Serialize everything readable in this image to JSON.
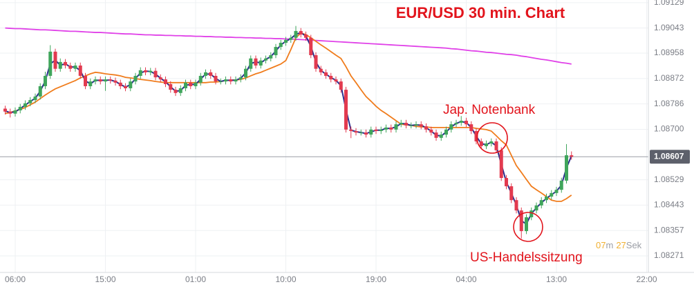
{
  "chart_data": {
    "type": "candlestick",
    "title": "EUR/USD 30 min. Chart",
    "annotations": [
      "Jap. Notenbank",
      "US-Handelssitzung"
    ],
    "countdown": {
      "minutes": "07",
      "minutes_unit": "m",
      "seconds": "27",
      "seconds_unit": "Sek"
    },
    "current_price": 1.08607,
    "up_color": "#3fa55b",
    "down_color": "#e23a4f",
    "ylim": [
      1.08215,
      1.09138
    ],
    "yticks": [
      1.09129,
      1.09043,
      1.08958,
      1.08872,
      1.08786,
      {
        "value": 1.087,
        "label": "1.08700"
      },
      1.08529,
      1.08443,
      1.08357,
      1.08271
    ],
    "grid": true,
    "categories": [
      null,
      null,
      "06:00",
      null,
      null,
      null,
      null,
      null,
      null,
      null,
      null,
      null,
      null,
      null,
      null,
      null,
      null,
      null,
      null,
      null,
      "15:00",
      null,
      null,
      null,
      null,
      null,
      null,
      null,
      null,
      null,
      null,
      null,
      null,
      null,
      null,
      null,
      null,
      null,
      "01:00",
      null,
      null,
      null,
      null,
      null,
      null,
      null,
      null,
      null,
      null,
      null,
      null,
      null,
      null,
      null,
      null,
      null,
      "10:00",
      null,
      null,
      null,
      null,
      null,
      null,
      null,
      null,
      null,
      null,
      null,
      null,
      null,
      null,
      null,
      null,
      null,
      "19:00",
      null,
      null,
      null,
      null,
      null,
      null,
      null,
      null,
      null,
      null,
      null,
      null,
      null,
      null,
      null,
      null,
      null,
      "04:00",
      null,
      null,
      null,
      null,
      null,
      null,
      null,
      null,
      null,
      null,
      null,
      null,
      null,
      null,
      null,
      null,
      null,
      "13:00",
      null,
      null,
      null,
      null,
      null,
      null,
      null,
      null,
      null,
      null,
      null,
      null,
      null,
      null,
      null,
      null,
      null,
      "22:00"
    ],
    "open": [
      1.0877,
      1.0876,
      1.08753,
      1.08764,
      1.08776,
      1.08788,
      1.08799,
      1.08811,
      1.08846,
      1.08881,
      1.08963,
      1.08905,
      1.08928,
      1.08916,
      1.08905,
      1.08916,
      1.08881,
      1.08846,
      1.08862,
      1.08869,
      1.08862,
      1.08869,
      1.08865,
      1.08858,
      1.08846,
      1.08839,
      1.08862,
      1.08881,
      1.089,
      1.08893,
      1.08898,
      1.08876,
      1.08869,
      1.08853,
      1.08834,
      1.08823,
      1.08839,
      1.08858,
      1.08846,
      1.08858,
      1.08881,
      1.08893,
      1.08881,
      1.08862,
      1.08862,
      1.08869,
      1.08862,
      1.08869,
      1.08876,
      1.08905,
      1.0894,
      1.08916,
      1.08933,
      1.0894,
      1.08951,
      1.08979,
      1.08993,
      1.09003,
      1.0901,
      1.09033,
      1.09021,
      1.0901,
      1.08951,
      1.08905,
      1.08893,
      1.08881,
      1.08869,
      1.08862,
      1.08834,
      1.08699,
      1.08694,
      1.08689,
      1.08689,
      1.08682,
      1.08699,
      1.08694,
      1.08699,
      1.08706,
      1.08699,
      1.08717,
      1.08722,
      1.08713,
      1.08713,
      1.08717,
      1.0871,
      1.08699,
      1.08689,
      1.08671,
      1.08682,
      1.08699,
      1.08717,
      1.08722,
      1.08729,
      1.08717,
      1.08694,
      1.08659,
      1.08643,
      1.08652,
      1.08659,
      1.08629,
      1.08535,
      1.08507,
      1.0846,
      1.08425,
      1.08355,
      1.08402,
      1.08425,
      1.08442,
      1.0846,
      1.08472,
      1.08484,
      1.08495,
      1.08526,
      1.08612,
      null,
      null,
      null,
      null,
      null,
      null,
      null,
      null,
      null,
      null,
      null,
      null,
      null,
      null,
      null
    ],
    "high": [
      1.0878,
      1.0877,
      1.08774,
      1.08786,
      1.08798,
      1.08809,
      1.08821,
      1.08856,
      1.08895,
      1.08985,
      1.08973,
      1.0894,
      1.08938,
      1.08926,
      1.08926,
      1.08926,
      1.08891,
      1.08872,
      1.08879,
      1.08879,
      1.08879,
      1.08879,
      1.08875,
      1.08868,
      1.08856,
      1.08872,
      1.08891,
      1.0891,
      1.0891,
      1.08908,
      1.08908,
      1.08886,
      1.08879,
      1.08863,
      1.08844,
      1.08849,
      1.08868,
      1.08868,
      1.08868,
      1.08891,
      1.08903,
      1.08903,
      1.08891,
      1.08872,
      1.08879,
      1.08879,
      1.08879,
      1.08886,
      1.08915,
      1.0895,
      1.0895,
      1.08943,
      1.0895,
      1.08961,
      1.08989,
      1.09003,
      1.09013,
      1.0902,
      1.0905,
      1.09043,
      1.09031,
      1.0902,
      1.08961,
      1.08915,
      1.08903,
      1.08891,
      1.08879,
      1.08872,
      1.08844,
      1.08709,
      1.08704,
      1.08699,
      1.08699,
      1.08709,
      1.08709,
      1.08709,
      1.08716,
      1.08716,
      1.08727,
      1.08732,
      1.08732,
      1.08723,
      1.08727,
      1.08727,
      1.0872,
      1.08709,
      1.08699,
      1.08692,
      1.08709,
      1.08727,
      1.08732,
      1.08745,
      1.08739,
      1.08727,
      1.08704,
      1.08669,
      1.08662,
      1.08669,
      1.08669,
      1.08639,
      1.08545,
      1.08517,
      1.0847,
      1.08435,
      1.08412,
      1.08435,
      1.08452,
      1.0847,
      1.08482,
      1.08494,
      1.08505,
      1.08536,
      1.0865,
      1.08625,
      null,
      null,
      null,
      null,
      null,
      null,
      null,
      null,
      null,
      null,
      null,
      null,
      null,
      null,
      null
    ],
    "low": [
      1.0875,
      1.0874,
      1.08743,
      1.08754,
      1.08766,
      1.08778,
      1.08789,
      1.08801,
      1.08836,
      1.08871,
      1.08895,
      1.08895,
      1.08906,
      1.08895,
      1.08895,
      1.08871,
      1.08836,
      1.08836,
      1.08852,
      1.08852,
      1.0883,
      1.08855,
      1.08848,
      1.08836,
      1.08829,
      1.08829,
      1.08852,
      1.08871,
      1.08883,
      1.08883,
      1.08866,
      1.08859,
      1.08843,
      1.08824,
      1.08813,
      1.08813,
      1.08829,
      1.08836,
      1.08836,
      1.08848,
      1.08871,
      1.08871,
      1.08852,
      1.08852,
      1.08852,
      1.08852,
      1.08852,
      1.08859,
      1.08866,
      1.08895,
      1.08906,
      1.08906,
      1.08923,
      1.0893,
      1.08941,
      1.08969,
      1.08983,
      1.08993,
      1.09,
      1.09011,
      1.09,
      1.08941,
      1.08895,
      1.08883,
      1.08871,
      1.08859,
      1.08852,
      1.08824,
      1.08689,
      1.0867,
      1.08679,
      1.08679,
      1.08672,
      1.08672,
      1.08684,
      1.08684,
      1.08689,
      1.08689,
      1.08689,
      1.08707,
      1.08703,
      1.08703,
      1.08703,
      1.087,
      1.08689,
      1.08679,
      1.08661,
      1.08661,
      1.08672,
      1.08689,
      1.08707,
      1.08712,
      1.08707,
      1.08684,
      1.08649,
      1.08633,
      1.08633,
      1.08642,
      1.08619,
      1.08525,
      1.08497,
      1.0845,
      1.08415,
      1.0833,
      1.08345,
      1.08392,
      1.08415,
      1.08432,
      1.0845,
      1.08462,
      1.08474,
      1.08485,
      1.08516,
      1.08597,
      null,
      null,
      null,
      null,
      null,
      null,
      null,
      null,
      null,
      null,
      null,
      null,
      null,
      null,
      null
    ],
    "close": [
      1.0876,
      1.08753,
      1.08764,
      1.08776,
      1.08788,
      1.08799,
      1.08811,
      1.08846,
      1.08881,
      1.08963,
      1.08905,
      1.08928,
      1.08916,
      1.08905,
      1.08916,
      1.08881,
      1.08846,
      1.08862,
      1.08869,
      1.08862,
      1.08869,
      1.08865,
      1.08858,
      1.08846,
      1.08839,
      1.08862,
      1.08881,
      1.089,
      1.08893,
      1.08898,
      1.08876,
      1.08869,
      1.08853,
      1.08834,
      1.08823,
      1.08839,
      1.08858,
      1.08846,
      1.08858,
      1.08881,
      1.08893,
      1.08881,
      1.08862,
      1.08862,
      1.08869,
      1.08862,
      1.08869,
      1.08876,
      1.08905,
      1.0894,
      1.08916,
      1.08933,
      1.0894,
      1.08951,
      1.08979,
      1.08993,
      1.09003,
      1.0901,
      1.09033,
      1.09021,
      1.0901,
      1.08951,
      1.08905,
      1.08893,
      1.08881,
      1.08869,
      1.08862,
      1.08834,
      1.08699,
      1.08694,
      1.08689,
      1.08689,
      1.08682,
      1.08699,
      1.08694,
      1.08699,
      1.08706,
      1.08699,
      1.08717,
      1.08722,
      1.08713,
      1.08713,
      1.08717,
      1.0871,
      1.08699,
      1.08689,
      1.08671,
      1.08682,
      1.08699,
      1.08717,
      1.08722,
      1.08729,
      1.08717,
      1.08694,
      1.08659,
      1.08643,
      1.08652,
      1.08659,
      1.08629,
      1.08535,
      1.08507,
      1.0846,
      1.08425,
      1.08355,
      1.08402,
      1.08425,
      1.08442,
      1.0846,
      1.08472,
      1.08484,
      1.08495,
      1.08526,
      1.08612,
      1.08607,
      null,
      null,
      null,
      null,
      null,
      null,
      null,
      null,
      null,
      null,
      null,
      null,
      null,
      null,
      null
    ],
    "lines": [
      {
        "color": "#e040e8",
        "values": [
          1.09043,
          1.09042,
          1.09041,
          1.09041,
          1.0904,
          1.09039,
          1.09038,
          1.09037,
          1.09037,
          1.09036,
          1.09035,
          1.09034,
          1.09033,
          1.09032,
          1.09032,
          1.09031,
          1.0903,
          1.09029,
          1.09028,
          1.09028,
          1.09027,
          1.09026,
          1.09025,
          1.09024,
          1.09023,
          1.09023,
          1.09022,
          1.09021,
          1.0902,
          1.0902,
          1.09019,
          1.09019,
          1.09018,
          1.09018,
          1.09017,
          1.09017,
          1.09016,
          1.09016,
          1.09015,
          1.09015,
          1.09014,
          1.09014,
          1.09013,
          1.09013,
          1.09012,
          1.09012,
          1.09011,
          1.09011,
          1.0901,
          1.0901,
          1.09009,
          1.09009,
          1.09008,
          1.09008,
          1.09007,
          1.09007,
          1.09006,
          1.09006,
          1.09005,
          1.09004,
          1.09003,
          1.09002,
          1.09001,
          1.09,
          1.08999,
          1.08998,
          1.08997,
          1.08996,
          1.08995,
          1.08994,
          1.08993,
          1.08992,
          1.08991,
          1.0899,
          1.08989,
          1.08988,
          1.08987,
          1.08986,
          1.08985,
          1.08984,
          1.08983,
          1.08982,
          1.08981,
          1.0898,
          1.08979,
          1.08978,
          1.08977,
          1.08976,
          1.08975,
          1.08973,
          1.08972,
          1.0897,
          1.08968,
          1.08966,
          1.08965,
          1.08963,
          1.08961,
          1.0896,
          1.08958,
          1.08956,
          1.08954,
          1.08953,
          1.08951,
          1.08948,
          1.08946,
          1.08943,
          1.0894,
          1.08937,
          1.08935,
          1.08932,
          1.08929,
          1.08926,
          1.08924,
          1.08921,
          null,
          null,
          null,
          null,
          null,
          null,
          null,
          null,
          null,
          null,
          null,
          null,
          null,
          null,
          null
        ]
      },
      {
        "color": "#f07c1c",
        "values": [
          1.08753,
          1.08757,
          1.08762,
          1.08767,
          1.08774,
          1.08783,
          1.08792,
          1.08804,
          1.08816,
          1.08827,
          1.08837,
          1.08844,
          1.08851,
          1.08858,
          1.08865,
          1.08874,
          1.08881,
          1.08888,
          1.08893,
          1.08891,
          1.08888,
          1.08886,
          1.08884,
          1.08881,
          1.08876,
          1.08874,
          1.08872,
          1.08869,
          1.08867,
          1.08865,
          1.08862,
          1.0886,
          1.08858,
          1.08858,
          1.08858,
          1.08858,
          1.08858,
          1.08858,
          1.08858,
          1.08858,
          1.08858,
          1.0886,
          1.0886,
          1.08862,
          1.08865,
          1.08867,
          1.08867,
          1.08869,
          1.08874,
          1.08881,
          1.08888,
          1.08893,
          1.089,
          1.08907,
          1.08914,
          1.08921,
          1.08933,
          1.0897,
          1.0901,
          1.09026,
          1.09021,
          1.0901,
          1.08998,
          1.08986,
          1.08975,
          1.08963,
          1.08951,
          1.0894,
          1.08912,
          1.08881,
          1.08858,
          1.08834,
          1.08811,
          1.08795,
          1.08778,
          1.08764,
          1.08753,
          1.08741,
          1.08729,
          1.08717,
          1.08715,
          1.08713,
          1.0871,
          1.08708,
          1.08708,
          1.08706,
          1.08706,
          1.08706,
          1.08706,
          1.08706,
          1.08706,
          1.08706,
          1.08706,
          1.08706,
          1.08703,
          1.08701,
          1.08699,
          1.08694,
          1.08678,
          1.08661,
          1.08647,
          1.08612,
          1.08577,
          1.08554,
          1.0853,
          1.08507,
          1.08495,
          1.08484,
          1.08472,
          1.0846,
          1.08456,
          1.08456,
          1.08465,
          1.08477,
          null,
          null,
          null,
          null,
          null,
          null,
          null,
          null,
          null,
          null,
          null,
          null,
          null,
          null,
          null
        ]
      },
      {
        "color": "#2a2d8c",
        "values": [
          1.08762,
          1.08757,
          1.08759,
          1.0877,
          1.08782,
          1.08794,
          1.08805,
          1.08829,
          1.08864,
          1.08922,
          1.08934,
          1.08917,
          1.08922,
          1.08911,
          1.08911,
          1.08899,
          1.08864,
          1.08854,
          1.08866,
          1.08866,
          1.08866,
          1.08867,
          1.08862,
          1.08852,
          1.08843,
          1.08851,
          1.08872,
          1.08891,
          1.08897,
          1.08896,
          1.08887,
          1.08873,
          1.08861,
          1.08844,
          1.08829,
          1.08831,
          1.08849,
          1.08852,
          1.08852,
          1.0887,
          1.08887,
          1.08887,
          1.08872,
          1.08862,
          1.08866,
          1.08866,
          1.08866,
          1.08873,
          1.08891,
          1.08923,
          1.08928,
          1.08925,
          1.08937,
          1.08946,
          1.08965,
          1.08986,
          1.08998,
          1.09007,
          1.09022,
          1.09027,
          1.09016,
          1.08981,
          1.08928,
          1.08899,
          1.08887,
          1.08875,
          1.08866,
          1.08848,
          1.08767,
          1.08697,
          1.08692,
          1.08689,
          1.08686,
          1.08691,
          1.08697,
          1.08697,
          1.08703,
          1.08703,
          1.08708,
          1.0872,
          1.08718,
          1.08713,
          1.08715,
          1.08714,
          1.08705,
          1.08694,
          1.0868,
          1.08677,
          1.08691,
          1.08708,
          1.0872,
          1.08726,
          1.08723,
          1.08706,
          1.08677,
          1.08651,
          1.08648,
          1.08656,
          1.08644,
          1.08582,
          1.08521,
          1.08484,
          1.08443,
          1.0839,
          1.08379,
          1.08414,
          1.08434,
          1.08451,
          1.08466,
          1.08478,
          1.0849,
          1.08511,
          1.08569,
          1.0861,
          null,
          null,
          null,
          null,
          null,
          null,
          null,
          null,
          null,
          null,
          null,
          null,
          null,
          null,
          null
        ]
      }
    ]
  }
}
